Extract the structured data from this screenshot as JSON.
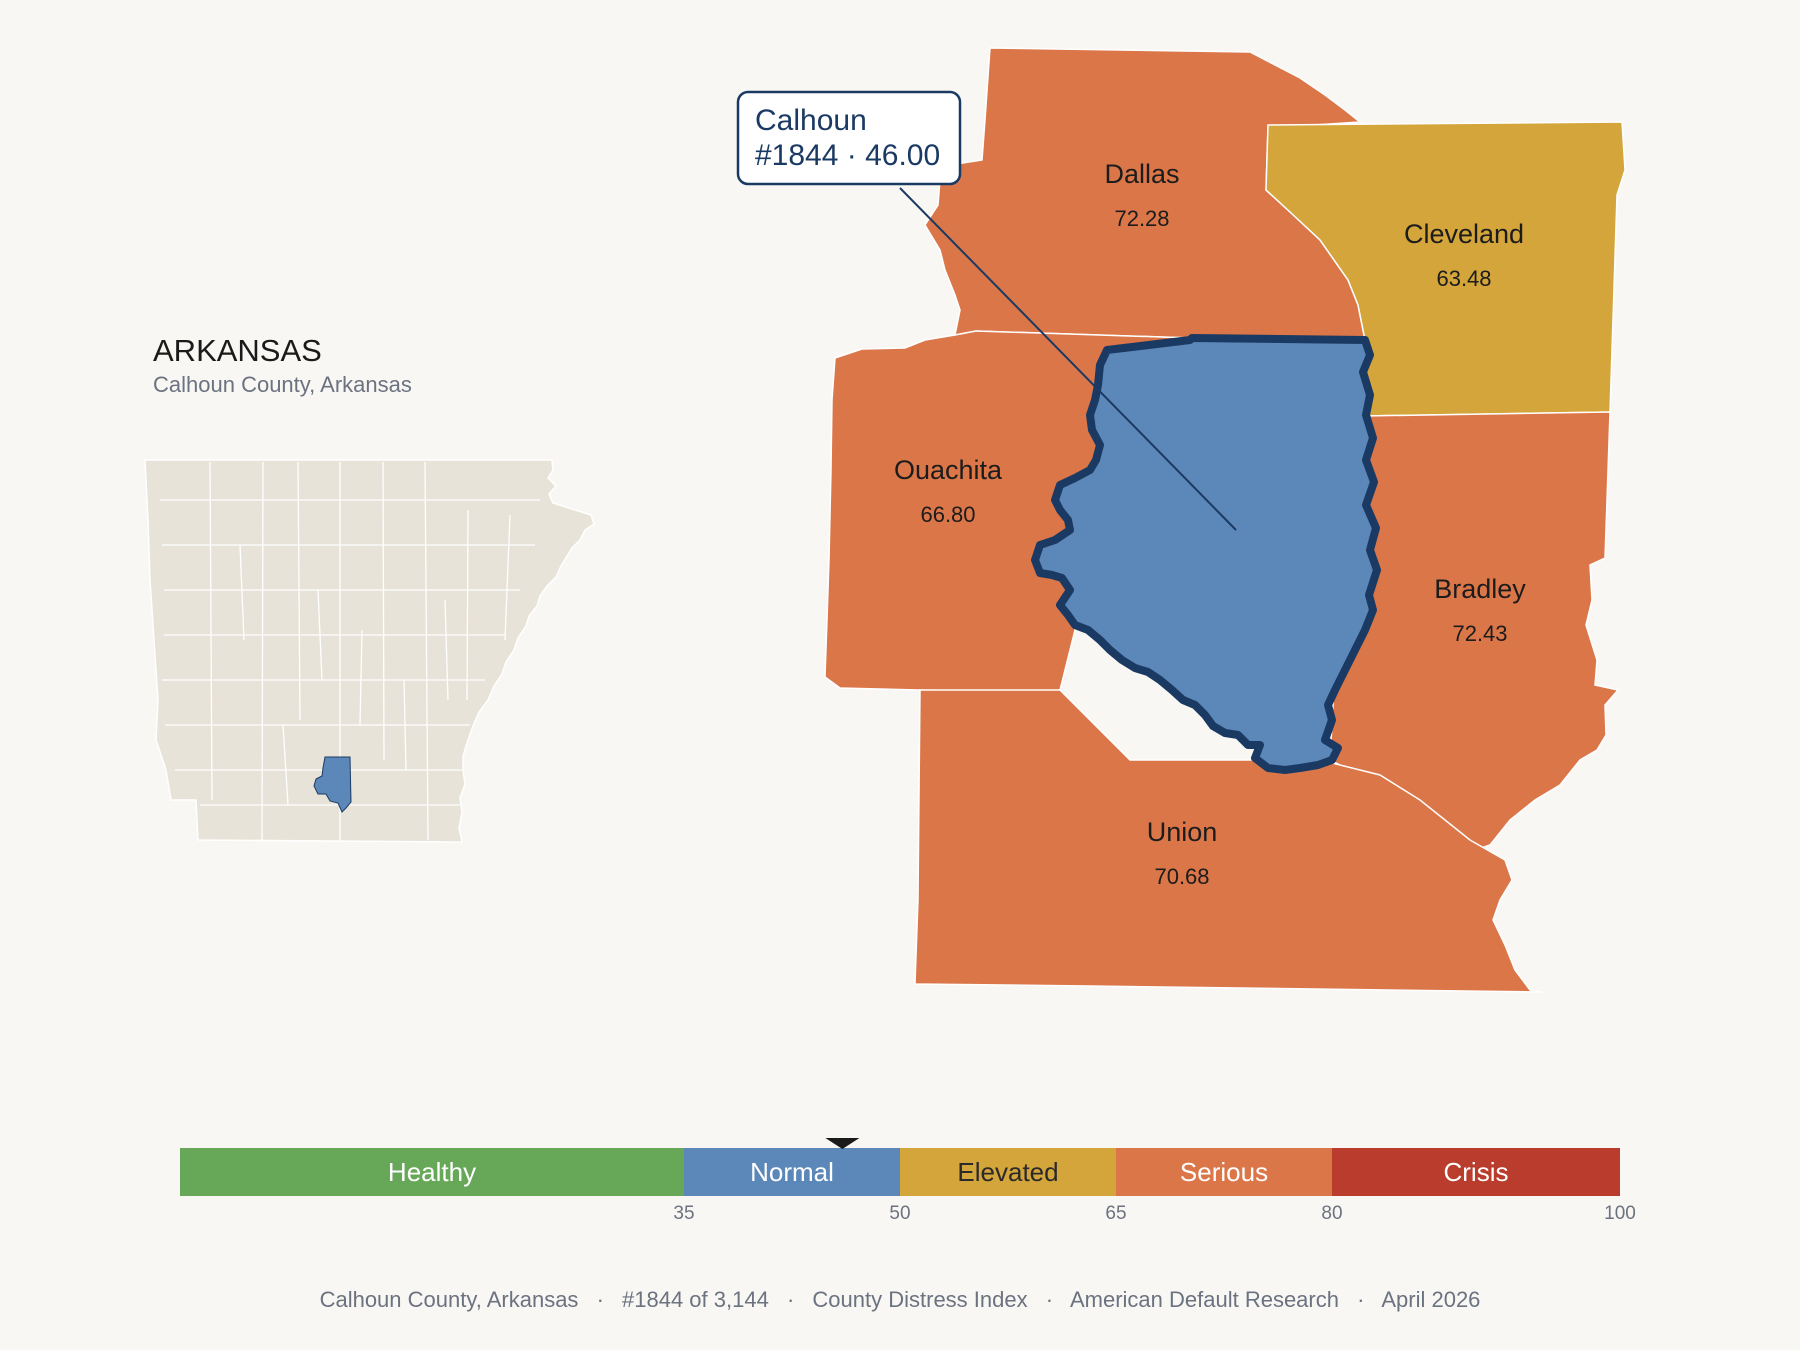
{
  "state": {
    "title": "ARKANSAS",
    "subtitle": "Calhoun County, Arkansas"
  },
  "callout": {
    "name": "Calhoun",
    "rank_value": "#1844 · 46.00"
  },
  "counties": [
    {
      "id": "dallas",
      "name": "Dallas",
      "value": "72.28",
      "color": "#db7649"
    },
    {
      "id": "cleveland",
      "name": "Cleveland",
      "value": "63.48",
      "color": "#d4a53a"
    },
    {
      "id": "ouachita",
      "name": "Ouachita",
      "value": "66.80",
      "color": "#db7649"
    },
    {
      "id": "bradley",
      "name": "Bradley",
      "value": "72.43",
      "color": "#db7649"
    },
    {
      "id": "union",
      "name": "Union",
      "value": "70.68",
      "color": "#db7649"
    },
    {
      "id": "calhoun",
      "name": "Calhoun",
      "value": "46.00",
      "color": "#5b88b8"
    }
  ],
  "legend": {
    "min": 0,
    "max": 100,
    "marker_value": 46,
    "bands": [
      {
        "label": "Healthy",
        "from": 0,
        "to": 35,
        "color": "#67a758"
      },
      {
        "label": "Normal",
        "from": 35,
        "to": 50,
        "color": "#5b88b8"
      },
      {
        "label": "Elevated",
        "from": 50,
        "to": 65,
        "color": "#d4a53a"
      },
      {
        "label": "Serious",
        "from": 65,
        "to": 80,
        "color": "#db7649"
      },
      {
        "label": "Crisis",
        "from": 80,
        "to": 100,
        "color": "#b93c2c"
      }
    ],
    "ticks": [
      "35",
      "50",
      "65",
      "80",
      "100"
    ]
  },
  "footer": {
    "county": "Calhoun County, Arkansas",
    "rank": "#1844 of 3,144",
    "index": "County Distress Index",
    "org": "American Default Research",
    "date": "April 2026",
    "separator": "·"
  },
  "colors": {
    "background": "#f9f7f3",
    "state_fill": "#e8e3d8",
    "highlight": "#5b88b8",
    "highlight_border": "#1b3a63"
  }
}
